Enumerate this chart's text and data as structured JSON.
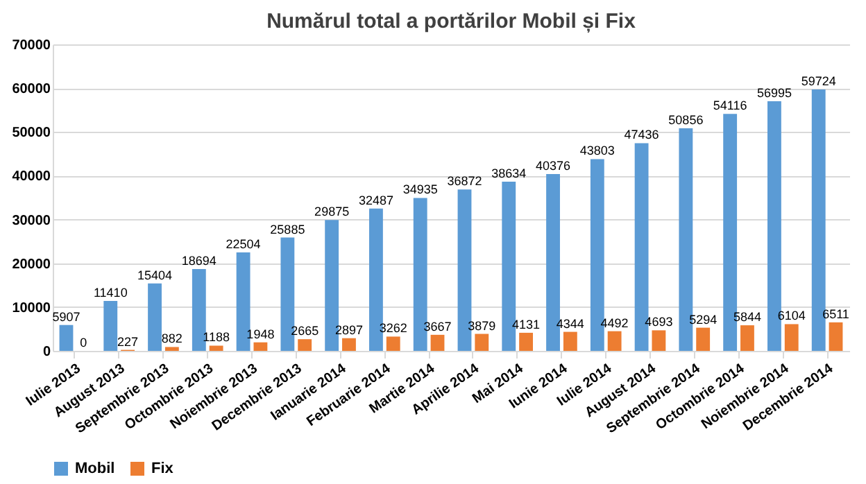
{
  "chart_data": {
    "type": "bar",
    "title": "Numărul total a portărilor  Mobil și Fix",
    "categories": [
      "Iulie 2013",
      "August 2013",
      "Septembrie 2013",
      "Octombrie 2013",
      "Noiembrie 2013",
      "Decembrie 2013",
      "Ianuarie 2014",
      "Februarie 2014",
      "Martie 2014",
      "Aprilie 2014",
      "Mai 2014",
      "Iunie 2014",
      "Iulie 2014",
      "August 2014",
      "Septembrie 2014",
      "Octombrie 2014",
      "Noiembrie 2014",
      "Decembrie 2014"
    ],
    "series": [
      {
        "name": "Mobil",
        "color": "#5b9bd5",
        "values": [
          5907,
          11410,
          15404,
          18694,
          22504,
          25885,
          29875,
          32487,
          34935,
          36872,
          38634,
          40376,
          43803,
          47436,
          50856,
          54116,
          56995,
          59724
        ]
      },
      {
        "name": "Fix",
        "color": "#ed7d31",
        "values": [
          0,
          227,
          882,
          1188,
          1948,
          2665,
          2897,
          3262,
          3667,
          3879,
          4131,
          4344,
          4492,
          4693,
          5294,
          5844,
          6104,
          6511
        ]
      }
    ],
    "ylim": [
      0,
      70000
    ],
    "yticks": [
      0,
      10000,
      20000,
      30000,
      40000,
      50000,
      60000,
      70000
    ],
    "grid": "y",
    "legend": "bottom",
    "data_labels": true
  }
}
